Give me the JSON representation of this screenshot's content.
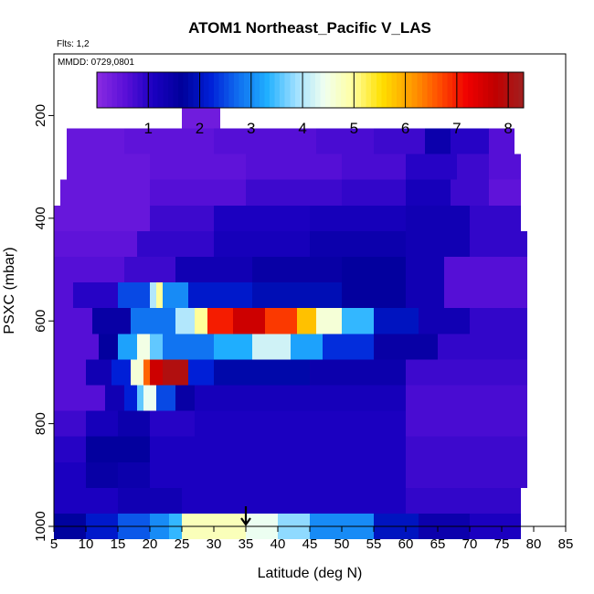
{
  "chart_data": {
    "type": "heatmap",
    "title": "ATOM1 Northeast_Pacific V_LAS",
    "flights_label": "Flts: 1,2",
    "date_label": "MMDD: 0729,0801",
    "xlabel": "Latitude (deg N)",
    "ylabel": "PSXC (mbar)",
    "xlim": [
      5,
      85
    ],
    "ylim": [
      1000,
      80
    ],
    "y_reversed": true,
    "x_ticks": [
      5,
      10,
      15,
      20,
      25,
      30,
      35,
      40,
      45,
      50,
      55,
      60,
      65,
      70,
      75,
      80,
      85
    ],
    "y_ticks": [
      200,
      400,
      600,
      800,
      1000
    ],
    "colorbar": {
      "min": 0,
      "max": 8.3,
      "ticks": [
        1,
        2,
        3,
        4,
        5,
        6,
        7,
        8
      ],
      "colors": [
        "#8a2be2",
        "#5a10d8",
        "#1a00c0",
        "#00009a",
        "#0020d8",
        "#1070f0",
        "#20b0ff",
        "#a0e0ff",
        "#f0fff0",
        "#ffffa0",
        "#ffe000",
        "#ffa000",
        "#ff5000",
        "#f00000",
        "#c00000",
        "#a02020"
      ]
    },
    "marker_latitude": 35,
    "bins": [
      {
        "p": 200,
        "segments": [
          [
            25,
            31,
            0.3
          ]
        ]
      },
      {
        "p": 250,
        "segments": [
          [
            7,
            16,
            0.4
          ],
          [
            16,
            30,
            0.5
          ],
          [
            30,
            46,
            0.6
          ],
          [
            46,
            55,
            0.7
          ],
          [
            55,
            63,
            0.8
          ],
          [
            63,
            67,
            1.4
          ],
          [
            67,
            73,
            1.0
          ],
          [
            73,
            77,
            0.6
          ]
        ]
      },
      {
        "p": 300,
        "segments": [
          [
            7,
            20,
            0.4
          ],
          [
            20,
            35,
            0.5
          ],
          [
            35,
            50,
            0.6
          ],
          [
            50,
            60,
            0.7
          ],
          [
            60,
            68,
            1.0
          ],
          [
            68,
            73,
            0.8
          ],
          [
            73,
            78,
            0.6
          ]
        ]
      },
      {
        "p": 350,
        "segments": [
          [
            6,
            20,
            0.4
          ],
          [
            20,
            35,
            0.6
          ],
          [
            35,
            50,
            0.8
          ],
          [
            50,
            60,
            0.9
          ],
          [
            60,
            67,
            1.2
          ],
          [
            67,
            73,
            0.8
          ],
          [
            73,
            78,
            0.5
          ]
        ]
      },
      {
        "p": 400,
        "segments": [
          [
            5,
            20,
            0.4
          ],
          [
            20,
            30,
            0.8
          ],
          [
            30,
            45,
            1.1
          ],
          [
            45,
            60,
            1.2
          ],
          [
            60,
            70,
            1.3
          ],
          [
            70,
            78,
            0.9
          ]
        ]
      },
      {
        "p": 450,
        "segments": [
          [
            5,
            18,
            0.5
          ],
          [
            18,
            30,
            0.9
          ],
          [
            30,
            45,
            1.2
          ],
          [
            45,
            60,
            1.4
          ],
          [
            60,
            70,
            1.3
          ],
          [
            70,
            79,
            0.9
          ]
        ]
      },
      {
        "p": 500,
        "segments": [
          [
            5,
            16,
            0.6
          ],
          [
            16,
            24,
            0.8
          ],
          [
            24,
            36,
            1.3
          ],
          [
            36,
            50,
            1.5
          ],
          [
            50,
            60,
            1.6
          ],
          [
            60,
            66,
            1.3
          ],
          [
            66,
            79,
            0.6
          ]
        ]
      },
      {
        "p": 550,
        "segments": [
          [
            5,
            8,
            0.6
          ],
          [
            8,
            15,
            1.0
          ],
          [
            15,
            20,
            2.5
          ],
          [
            20,
            21,
            4.0
          ],
          [
            21,
            22,
            5.0
          ],
          [
            22,
            26,
            3.0
          ],
          [
            26,
            36,
            2.1
          ],
          [
            36,
            50,
            1.9
          ],
          [
            50,
            60,
            1.6
          ],
          [
            60,
            66,
            1.3
          ],
          [
            66,
            79,
            0.6
          ]
        ]
      },
      {
        "p": 600,
        "segments": [
          [
            5,
            11,
            0.6
          ],
          [
            11,
            17,
            1.5
          ],
          [
            17,
            24,
            2.8
          ],
          [
            24,
            27,
            4.0
          ],
          [
            27,
            29,
            5.0
          ],
          [
            29,
            33,
            7.0
          ],
          [
            33,
            38,
            7.6
          ],
          [
            38,
            43,
            6.8
          ],
          [
            43,
            46,
            5.8
          ],
          [
            46,
            50,
            4.6
          ],
          [
            50,
            55,
            3.4
          ],
          [
            55,
            62,
            2.0
          ],
          [
            62,
            70,
            1.3
          ],
          [
            70,
            79,
            0.9
          ]
        ]
      },
      {
        "p": 650,
        "segments": [
          [
            5,
            12,
            0.6
          ],
          [
            12,
            15,
            1.6
          ],
          [
            15,
            18,
            3.2
          ],
          [
            18,
            20,
            4.5
          ],
          [
            20,
            22,
            3.6
          ],
          [
            22,
            30,
            2.8
          ],
          [
            30,
            36,
            3.3
          ],
          [
            36,
            42,
            4.2
          ],
          [
            42,
            47,
            3.2
          ],
          [
            47,
            55,
            2.3
          ],
          [
            55,
            65,
            1.5
          ],
          [
            65,
            79,
            0.9
          ]
        ]
      },
      {
        "p": 700,
        "segments": [
          [
            5,
            10,
            0.6
          ],
          [
            10,
            14,
            1.3
          ],
          [
            14,
            17,
            2.2
          ],
          [
            17,
            19,
            4.6
          ],
          [
            19,
            20,
            6.5
          ],
          [
            20,
            22,
            7.6
          ],
          [
            22,
            26,
            8.0
          ],
          [
            26,
            30,
            2.2
          ],
          [
            30,
            45,
            1.8
          ],
          [
            45,
            60,
            1.4
          ],
          [
            60,
            79,
            0.8
          ]
        ]
      },
      {
        "p": 750,
        "segments": [
          [
            5,
            13,
            0.6
          ],
          [
            13,
            16,
            1.3
          ],
          [
            16,
            18,
            2.2
          ],
          [
            18,
            19,
            3.6
          ],
          [
            19,
            21,
            4.4
          ],
          [
            21,
            24,
            2.5
          ],
          [
            24,
            27,
            1.5
          ],
          [
            27,
            60,
            1.2
          ],
          [
            60,
            79,
            0.7
          ]
        ]
      },
      {
        "p": 800,
        "segments": [
          [
            5,
            10,
            0.8
          ],
          [
            10,
            15,
            1.2
          ],
          [
            15,
            20,
            1.4
          ],
          [
            20,
            27,
            1.0
          ],
          [
            27,
            60,
            1.1
          ],
          [
            60,
            79,
            0.7
          ]
        ]
      },
      {
        "p": 850,
        "segments": [
          [
            5,
            10,
            1.0
          ],
          [
            10,
            15,
            1.6
          ],
          [
            15,
            20,
            1.6
          ],
          [
            20,
            27,
            1.1
          ],
          [
            27,
            60,
            1.1
          ],
          [
            60,
            79,
            0.8
          ]
        ]
      },
      {
        "p": 900,
        "segments": [
          [
            5,
            10,
            1.1
          ],
          [
            10,
            15,
            1.5
          ],
          [
            15,
            20,
            1.4
          ],
          [
            20,
            30,
            1.1
          ],
          [
            30,
            60,
            1.1
          ],
          [
            60,
            79,
            0.8
          ]
        ]
      },
      {
        "p": 950,
        "segments": [
          [
            5,
            15,
            1.1
          ],
          [
            15,
            25,
            1.3
          ],
          [
            25,
            35,
            1.1
          ],
          [
            35,
            60,
            1.1
          ],
          [
            60,
            78,
            0.9
          ]
        ]
      },
      {
        "p": 1000,
        "segments": [
          [
            5,
            10,
            1.7
          ],
          [
            10,
            15,
            2.1
          ],
          [
            15,
            20,
            2.6
          ],
          [
            20,
            23,
            3.0
          ],
          [
            23,
            25,
            3.4
          ],
          [
            25,
            35,
            4.8
          ],
          [
            35,
            40,
            4.4
          ],
          [
            40,
            45,
            3.8
          ],
          [
            45,
            55,
            3.0
          ],
          [
            55,
            62,
            2.0
          ],
          [
            62,
            70,
            1.4
          ],
          [
            70,
            78,
            1.1
          ]
        ]
      }
    ]
  }
}
